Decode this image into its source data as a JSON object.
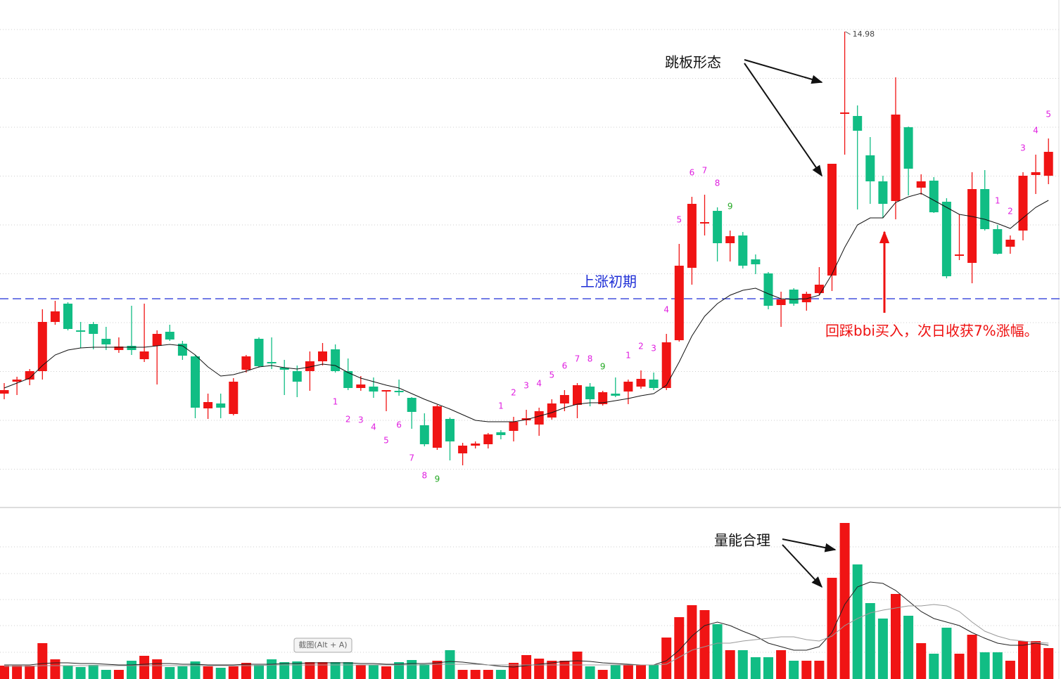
{
  "chart_data": [
    {
      "type": "candlestick",
      "ylim": [
        8.23,
        15.43
      ],
      "up_color": "#f01414",
      "down_color": "#11bd84",
      "open": [
        9.83,
        10.0,
        10.03,
        10.15,
        10.85,
        11.11,
        10.73,
        10.82,
        10.61,
        10.45,
        10.51,
        10.32,
        10.51,
        10.71,
        10.54,
        10.36,
        9.62,
        9.69,
        9.54,
        10.17,
        10.61,
        10.28,
        10.2,
        10.15,
        10.15,
        10.29,
        10.46,
        10.15,
        9.91,
        9.93,
        9.86,
        9.87,
        9.77,
        9.38,
        9.06,
        9.47,
        8.98,
        9.09,
        9.11,
        9.28,
        9.3,
        9.45,
        9.39,
        9.49,
        9.69,
        9.67,
        9.93,
        9.68,
        9.83,
        9.86,
        9.93,
        10.03,
        9.91,
        10.59,
        11.62,
        12.25,
        12.43,
        11.97,
        12.08,
        11.74,
        11.54,
        11.09,
        11.31,
        11.13,
        11.26,
        11.51,
        13.81,
        13.78,
        13.22,
        12.85,
        12.57,
        13.62,
        12.76,
        12.86,
        12.56,
        11.79,
        11.69,
        12.74,
        12.17,
        11.92,
        12.15,
        12.94,
        12.93
      ],
      "high": [
        9.98,
        10.07,
        10.18,
        11.03,
        11.15,
        11.13,
        10.85,
        10.85,
        10.78,
        10.63,
        11.08,
        11.11,
        10.73,
        10.81,
        10.58,
        10.38,
        9.83,
        9.83,
        10.05,
        10.38,
        10.63,
        10.63,
        10.31,
        10.23,
        10.43,
        10.55,
        10.53,
        10.33,
        10.08,
        10.06,
        9.88,
        10.03,
        9.78,
        9.55,
        9.67,
        9.49,
        9.13,
        9.15,
        9.27,
        9.31,
        9.5,
        9.6,
        9.63,
        9.75,
        9.88,
        9.98,
        9.98,
        9.87,
        10.06,
        10.03,
        10.16,
        10.13,
        10.68,
        11.96,
        12.63,
        12.66,
        12.48,
        12.15,
        12.13,
        11.81,
        11.56,
        11.28,
        11.33,
        11.28,
        11.63,
        13.1,
        14.98,
        13.93,
        13.48,
        12.93,
        14.33,
        13.63,
        12.95,
        12.91,
        12.61,
        12.38,
        12.98,
        13.01,
        12.23,
        12.08,
        12.98,
        13.23,
        13.46
      ],
      "low": [
        9.75,
        9.81,
        9.95,
        10.03,
        10.81,
        10.73,
        10.48,
        10.46,
        10.45,
        10.41,
        10.38,
        10.28,
        9.96,
        10.58,
        10.31,
        9.48,
        9.47,
        9.48,
        9.52,
        10.13,
        10.2,
        10.18,
        9.81,
        9.78,
        9.87,
        10.23,
        10.13,
        9.88,
        9.87,
        9.77,
        9.58,
        9.8,
        9.33,
        9.08,
        9.03,
        8.88,
        8.81,
        9.05,
        9.05,
        9.18,
        9.15,
        9.38,
        9.23,
        9.46,
        9.58,
        9.48,
        9.65,
        9.66,
        9.78,
        9.68,
        9.9,
        9.88,
        9.88,
        10.57,
        11.38,
        12.08,
        11.71,
        11.71,
        11.61,
        11.53,
        11.03,
        10.78,
        11.08,
        11.01,
        11.23,
        11.29,
        13.23,
        12.45,
        12.53,
        12.33,
        12.31,
        12.65,
        12.66,
        12.4,
        11.47,
        11.73,
        11.4,
        12.15,
        11.81,
        11.82,
        12.01,
        12.67,
        12.81
      ],
      "close": [
        9.88,
        10.03,
        10.15,
        10.85,
        11.0,
        10.75,
        10.71,
        10.68,
        10.53,
        10.5,
        10.45,
        10.43,
        10.68,
        10.6,
        10.37,
        9.63,
        9.71,
        9.63,
        10.0,
        10.36,
        10.22,
        10.26,
        10.17,
        10.0,
        10.29,
        10.43,
        10.15,
        9.91,
        9.96,
        9.86,
        9.88,
        9.85,
        9.57,
        9.11,
        9.65,
        9.15,
        9.09,
        9.12,
        9.25,
        9.24,
        9.43,
        9.48,
        9.58,
        9.69,
        9.81,
        9.95,
        9.75,
        9.85,
        9.8,
        10.0,
        10.04,
        9.91,
        10.56,
        11.65,
        12.53,
        12.27,
        11.97,
        12.07,
        11.65,
        11.67,
        11.08,
        11.17,
        11.11,
        11.25,
        11.38,
        13.1,
        13.83,
        13.57,
        12.85,
        12.53,
        13.8,
        13.03,
        12.85,
        12.41,
        11.5,
        11.81,
        12.74,
        12.17,
        11.82,
        12.02,
        12.93,
        12.98,
        13.27
      ],
      "high_label_index": 66,
      "line": {
        "color": "#111111",
        "values": [
          9.91,
          9.98,
          10.05,
          10.23,
          10.38,
          10.45,
          10.48,
          10.49,
          10.49,
          10.49,
          10.49,
          10.49,
          10.51,
          10.53,
          10.51,
          10.38,
          10.21,
          10.08,
          10.1,
          10.15,
          10.21,
          10.23,
          10.2,
          10.18,
          10.21,
          10.25,
          10.23,
          10.13,
          10.05,
          10.0,
          9.95,
          9.91,
          9.83,
          9.75,
          9.68,
          9.61,
          9.53,
          9.45,
          9.43,
          9.43,
          9.43,
          9.46,
          9.51,
          9.56,
          9.63,
          9.68,
          9.7,
          9.7,
          9.73,
          9.76,
          9.8,
          9.83,
          9.95,
          10.28,
          10.65,
          10.93,
          11.11,
          11.23,
          11.3,
          11.33,
          11.25,
          11.18,
          11.17,
          11.18,
          11.23,
          11.53,
          11.91,
          12.23,
          12.33,
          12.33,
          12.55,
          12.63,
          12.68,
          12.58,
          12.48,
          12.38,
          12.35,
          12.31,
          12.25,
          12.18,
          12.33,
          12.48,
          12.58
        ]
      },
      "reference_line": {
        "value": 11.18,
        "color": "#1f2fd6"
      },
      "annotations": [
        {
          "text": "上涨初期",
          "color": "#1f2fd6"
        },
        {
          "text": "跳板形态",
          "color": "#111111"
        },
        {
          "text": "回踩bbi买入，次日收获7%涨幅。",
          "color": "#ee1111"
        }
      ],
      "td_labels": [
        {
          "index": 26,
          "count": 1,
          "color": "#e020e0",
          "position": "below"
        },
        {
          "index": 27,
          "count": 2,
          "color": "#e020e0",
          "position": "below"
        },
        {
          "index": 28,
          "count": 3,
          "color": "#e020e0",
          "position": "below"
        },
        {
          "index": 29,
          "count": 4,
          "color": "#e020e0",
          "position": "below"
        },
        {
          "index": 30,
          "count": 5,
          "color": "#e020e0",
          "position": "below"
        },
        {
          "index": 31,
          "count": 6,
          "color": "#e020e0",
          "position": "below"
        },
        {
          "index": 32,
          "count": 7,
          "color": "#e020e0",
          "position": "below"
        },
        {
          "index": 33,
          "count": 8,
          "color": "#e020e0",
          "position": "below"
        },
        {
          "index": 34,
          "count": 9,
          "color": "#22a822",
          "position": "below"
        },
        {
          "index": 39,
          "count": 1,
          "color": "#e020e0",
          "position": "above"
        },
        {
          "index": 40,
          "count": 2,
          "color": "#e020e0",
          "position": "above"
        },
        {
          "index": 41,
          "count": 3,
          "color": "#e020e0",
          "position": "above"
        },
        {
          "index": 42,
          "count": 4,
          "color": "#e020e0",
          "position": "above"
        },
        {
          "index": 43,
          "count": 5,
          "color": "#e020e0",
          "position": "above"
        },
        {
          "index": 44,
          "count": 6,
          "color": "#e020e0",
          "position": "above"
        },
        {
          "index": 45,
          "count": 7,
          "color": "#e020e0",
          "position": "above"
        },
        {
          "index": 46,
          "count": 8,
          "color": "#e020e0",
          "position": "above"
        },
        {
          "index": 47,
          "count": 9,
          "color": "#22a822",
          "position": "above"
        },
        {
          "index": 49,
          "count": 1,
          "color": "#e020e0",
          "position": "above"
        },
        {
          "index": 50,
          "count": 2,
          "color": "#e020e0",
          "position": "above"
        },
        {
          "index": 51,
          "count": 3,
          "color": "#e020e0",
          "position": "above"
        },
        {
          "index": 52,
          "count": 4,
          "color": "#e020e0",
          "position": "above"
        },
        {
          "index": 53,
          "count": 5,
          "color": "#e020e0",
          "position": "above"
        },
        {
          "index": 54,
          "count": 6,
          "color": "#e020e0",
          "position": "above"
        },
        {
          "index": 55,
          "count": 7,
          "color": "#e020e0",
          "position": "above"
        },
        {
          "index": 56,
          "count": 8,
          "color": "#e020e0",
          "position": "above"
        },
        {
          "index": 57,
          "count": 9,
          "color": "#22a822",
          "position": "above"
        },
        {
          "index": 78,
          "count": 1,
          "color": "#e020e0",
          "position": "above"
        },
        {
          "index": 79,
          "count": 2,
          "color": "#e020e0",
          "position": "above"
        },
        {
          "index": 80,
          "count": 3,
          "color": "#e020e0",
          "position": "above"
        },
        {
          "index": 81,
          "count": 4,
          "color": "#e020e0",
          "position": "above"
        },
        {
          "index": 82,
          "count": 5,
          "color": "#e020e0",
          "position": "above"
        }
      ]
    },
    {
      "type": "bar",
      "ylim": [
        0,
        244
      ],
      "values": [
        19,
        19,
        19,
        51,
        28,
        19,
        17,
        20,
        13,
        13,
        26,
        33,
        28,
        17,
        18,
        25,
        18,
        16,
        18,
        23,
        20,
        28,
        24,
        25,
        24,
        24,
        24,
        24,
        20,
        20,
        18,
        24,
        27,
        21,
        26,
        41,
        13,
        13,
        13,
        13,
        23,
        34,
        29,
        26,
        26,
        39,
        18,
        13,
        20,
        20,
        20,
        20,
        59,
        88,
        105,
        98,
        78,
        41,
        41,
        31,
        31,
        41,
        26,
        26,
        26,
        144,
        222,
        163,
        108,
        86,
        121,
        90,
        51,
        36,
        73,
        36,
        63,
        38,
        38,
        26,
        54,
        54,
        44
      ],
      "lines": [
        {
          "color": "#222222",
          "values": [
            20,
            20,
            20,
            22,
            23,
            23,
            22,
            22,
            21,
            20,
            20,
            21,
            22,
            22,
            21,
            21,
            20,
            20,
            20,
            21,
            21,
            21,
            22,
            22,
            23,
            23,
            23,
            23,
            22,
            22,
            21,
            21,
            22,
            22,
            23,
            25,
            24,
            22,
            20,
            18,
            17,
            19,
            21,
            23,
            25,
            26,
            25,
            23,
            22,
            21,
            20,
            20,
            26,
            41,
            61,
            76,
            81,
            76,
            68,
            61,
            51,
            46,
            41,
            41,
            46,
            66,
            106,
            131,
            138,
            136,
            126,
            111,
            96,
            86,
            81,
            76,
            66,
            58,
            51,
            48,
            48,
            51,
            48
          ]
        },
        {
          "color": "#999999",
          "values": [
            18,
            18,
            18,
            19,
            19,
            19,
            19,
            19,
            19,
            19,
            19,
            19,
            19,
            19,
            19,
            19,
            19,
            19,
            19,
            19,
            19,
            20,
            20,
            20,
            20,
            20,
            20,
            20,
            20,
            20,
            20,
            20,
            20,
            20,
            21,
            21,
            21,
            21,
            20,
            20,
            20,
            20,
            20,
            20,
            20,
            20,
            20,
            20,
            20,
            20,
            20,
            20,
            21,
            31,
            41,
            46,
            51,
            51,
            54,
            56,
            58,
            60,
            60,
            56,
            54,
            61,
            76,
            86,
            94,
            98,
            101,
            104,
            104,
            106,
            104,
            96,
            81,
            68,
            61,
            56,
            54,
            52,
            51
          ]
        }
      ],
      "annotations": [
        {
          "text": "量能合理",
          "color": "#111111"
        }
      ]
    },
    {
      "type": "tooltip",
      "text": "截图(Alt + A)"
    }
  ]
}
